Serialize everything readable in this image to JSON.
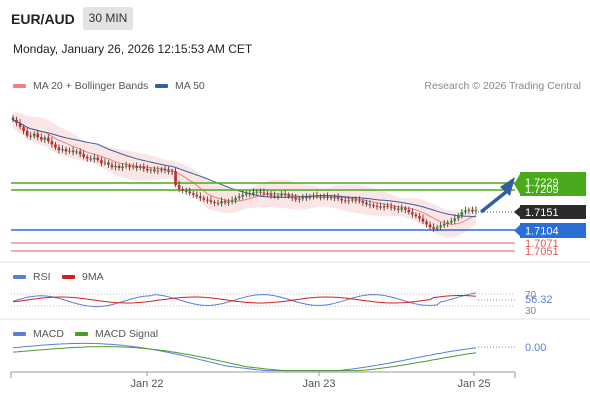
{
  "header": {
    "symbol": "EUR/AUD",
    "timeframe": "30 MIN",
    "timestamp": "Monday, January 26, 2026 12:15:53 AM CET"
  },
  "legend": {
    "ma20": "MA 20 + Bollinger Bands",
    "ma50": "MA 50",
    "credit": "Research © 2026 Trading Central",
    "ma20_color": "#f08080",
    "ma50_color": "#35609e"
  },
  "rsi_legend": {
    "rsi": "RSI",
    "ma": "9MA",
    "rsi_color": "#5b7fd6",
    "ma_color": "#d42020"
  },
  "macd_legend": {
    "macd": "MACD",
    "signal": "MACD Signal",
    "macd_color": "#5b7fd6",
    "signal_color": "#4c9a2a"
  },
  "chart_data": {
    "type": "candlestick",
    "x_ticks": [
      "Jan 22",
      "Jan 23",
      "Jan 25"
    ],
    "price_levels": [
      {
        "value": "1.7229",
        "color": "#4aaa1e",
        "kind": "resistance"
      },
      {
        "value": "1.7209",
        "color": "#4aaa1e",
        "kind": "resistance"
      },
      {
        "value": "1.7151",
        "color": "#2b2b2b",
        "kind": "last"
      },
      {
        "value": "1.7104",
        "color": "#2a6ed8",
        "kind": "pivot"
      },
      {
        "value": "1.7071",
        "color": "#e05a5a",
        "kind": "support"
      },
      {
        "value": "1.7051",
        "color": "#e05a5a",
        "kind": "support"
      }
    ],
    "closes": [
      1.738,
      1.7372,
      1.7362,
      1.7352,
      1.734,
      1.7338,
      1.7345,
      1.7336,
      1.733,
      1.7335,
      1.7326,
      1.7318,
      1.731,
      1.7303,
      1.7306,
      1.73,
      1.7302,
      1.7298,
      1.73,
      1.7293,
      1.7286,
      1.7282,
      1.728,
      1.7284,
      1.7278,
      1.727,
      1.7272,
      1.7266,
      1.726,
      1.7263,
      1.7258,
      1.7262,
      1.7264,
      1.726,
      1.7262,
      1.7258,
      1.7262,
      1.7256,
      1.7252,
      1.7254,
      1.725,
      1.7252,
      1.7255,
      1.7252,
      1.7248,
      1.725,
      1.7215,
      1.7205,
      1.72,
      1.7198,
      1.7194,
      1.719,
      1.7186,
      1.7182,
      1.7178,
      1.7176,
      1.7172,
      1.717,
      1.7168,
      1.7174,
      1.717,
      1.7172,
      1.7176,
      1.7182,
      1.7186,
      1.719,
      1.7194,
      1.7192,
      1.7196,
      1.7198,
      1.7196,
      1.7194,
      1.7192,
      1.7188,
      1.7186,
      1.7188,
      1.7192,
      1.719,
      1.7186,
      1.7182,
      1.7178,
      1.718,
      1.7184,
      1.7182,
      1.7186,
      1.7188,
      1.7186,
      1.7184,
      1.7186,
      1.7184,
      1.7182,
      1.7184,
      1.718,
      1.7176,
      1.7174,
      1.7176,
      1.7178,
      1.7176,
      1.7174,
      1.717,
      1.7166,
      1.7164,
      1.7162,
      1.716,
      1.7158,
      1.7162,
      1.716,
      1.7158,
      1.7155,
      1.7152,
      1.7156,
      1.7152,
      1.7146,
      1.714,
      1.7136,
      1.713,
      1.7122,
      1.7115,
      1.7108,
      1.7104,
      1.7108,
      1.7112,
      1.7116,
      1.712,
      1.7124,
      1.713,
      1.7138,
      1.7146,
      1.715,
      1.7152,
      1.7148,
      1.7151
    ],
    "y_range": [
      1.704,
      1.74
    ],
    "rsi": {
      "value": "56.32",
      "levels": [
        "70",
        "30"
      ]
    },
    "macd": {
      "value": "0.00"
    },
    "projection": "up"
  }
}
